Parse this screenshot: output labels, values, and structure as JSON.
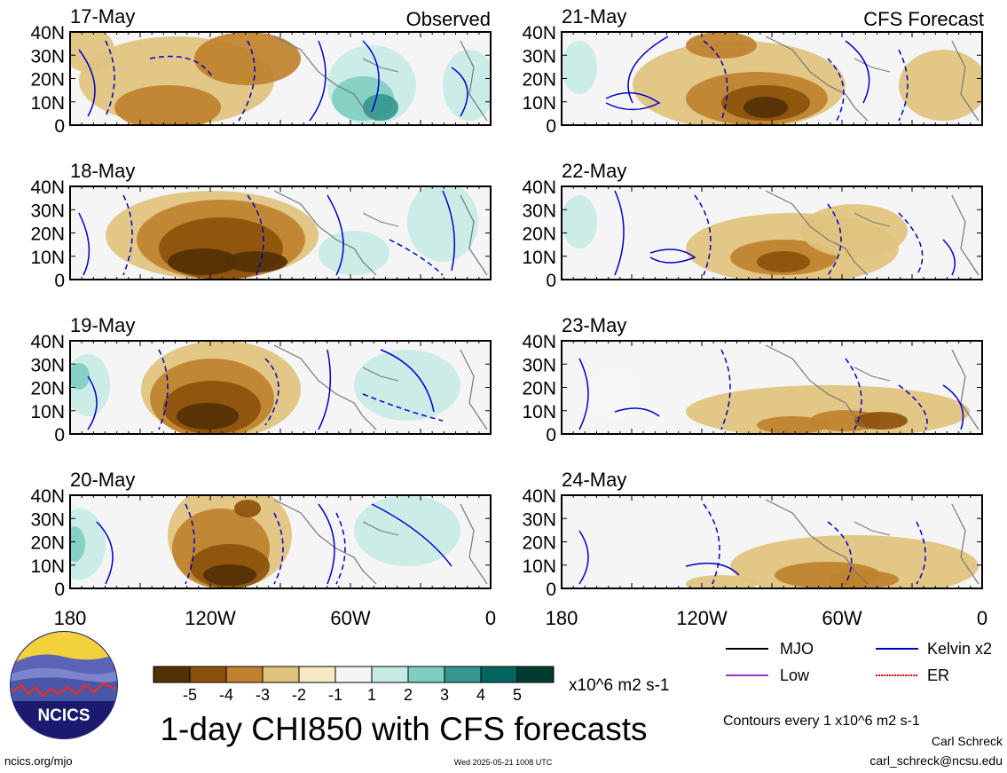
{
  "chart_data": {
    "type": "heatmap",
    "title": "1-day CHI850 with CFS forecasts",
    "units_label": "x10^6 m2 s-1",
    "observed_label": "Observed",
    "forecast_label": "CFS Forecast",
    "panels_left": [
      {
        "date": "17-May"
      },
      {
        "date": "18-May"
      },
      {
        "date": "19-May"
      },
      {
        "date": "20-May"
      }
    ],
    "panels_right": [
      {
        "date": "21-May"
      },
      {
        "date": "22-May"
      },
      {
        "date": "23-May"
      },
      {
        "date": "24-May"
      }
    ],
    "lat_ticks": [
      "40N",
      "30N",
      "20N",
      "10N",
      "0"
    ],
    "lon_ticks": [
      "180",
      "120W",
      "60W",
      "0"
    ],
    "colorbar": {
      "labels": [
        "-5",
        "-4",
        "-3",
        "-2",
        "-1",
        "1",
        "2",
        "3",
        "4",
        "5"
      ],
      "colors": [
        "#543005",
        "#8c510a",
        "#bf812d",
        "#dfc27d",
        "#f6e8c3",
        "#f5f5f5",
        "#c7eae5",
        "#80cdc1",
        "#35978f",
        "#01665e",
        "#003c30"
      ]
    },
    "legend": [
      {
        "name": "MJO",
        "color": "#000000"
      },
      {
        "name": "Kelvin x2",
        "color": "#0000cc"
      },
      {
        "name": "Low",
        "color": "#9933cc"
      },
      {
        "name": "ER",
        "color": "#dd0000"
      }
    ],
    "contour_note": "Contours every 1 x10^6 m2 s-1"
  },
  "footer": {
    "url": "ncics.org/mjo",
    "timestamp": "Wed 2025-05-21 1008 UTC",
    "author": "Carl Schreck",
    "email": "carl_schreck@ncsu.edu",
    "logo_text": "NCICS"
  }
}
